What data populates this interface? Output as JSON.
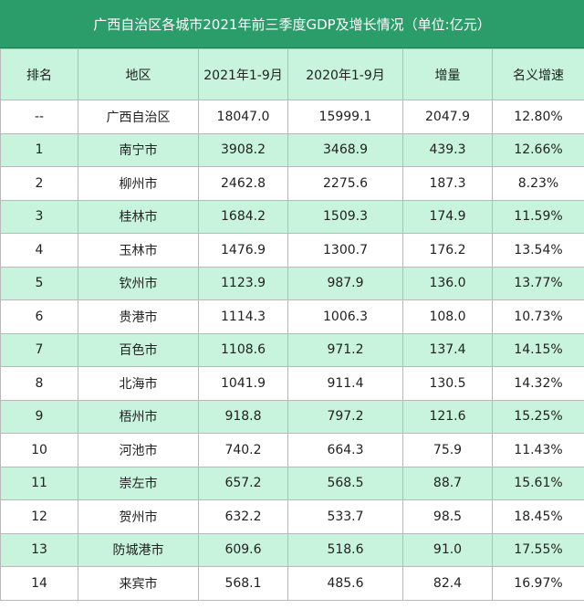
{
  "title": "广西自治区各城市2021年前三季度GDP及增长情况（单位:亿元）",
  "columns": [
    "排名",
    "地区",
    "2021年1-9月",
    "2020年1-9月",
    "增量",
    "名义增速"
  ],
  "rows": [
    [
      "--",
      "广西自治区",
      "18047.0",
      "15999.1",
      "2047.9",
      "12.80%"
    ],
    [
      "1",
      "南宁市",
      "3908.2",
      "3468.9",
      "439.3",
      "12.66%"
    ],
    [
      "2",
      "柳州市",
      "2462.8",
      "2275.6",
      "187.3",
      "8.23%"
    ],
    [
      "3",
      "桂林市",
      "1684.2",
      "1509.3",
      "174.9",
      "11.59%"
    ],
    [
      "4",
      "玉林市",
      "1476.9",
      "1300.7",
      "176.2",
      "13.54%"
    ],
    [
      "5",
      "钦州市",
      "1123.9",
      "987.9",
      "136.0",
      "13.77%"
    ],
    [
      "6",
      "贵港市",
      "1114.3",
      "1006.3",
      "108.0",
      "10.73%"
    ],
    [
      "7",
      "百色市",
      "1108.6",
      "971.2",
      "137.4",
      "14.15%"
    ],
    [
      "8",
      "北海市",
      "1041.9",
      "911.4",
      "130.5",
      "14.32%"
    ],
    [
      "9",
      "梧州市",
      "918.8",
      "797.2",
      "121.6",
      "15.25%"
    ],
    [
      "10",
      "河池市",
      "740.2",
      "664.3",
      "75.9",
      "11.43%"
    ],
    [
      "11",
      "崇左市",
      "657.2",
      "568.5",
      "88.7",
      "15.61%"
    ],
    [
      "12",
      "贺州市",
      "632.2",
      "533.7",
      "98.5",
      "18.45%"
    ],
    [
      "13",
      "防城港市",
      "609.6",
      "518.6",
      "91.0",
      "17.55%"
    ],
    [
      "14",
      "来宾市",
      "568.1",
      "485.6",
      "82.4",
      "16.97%"
    ]
  ]
}
